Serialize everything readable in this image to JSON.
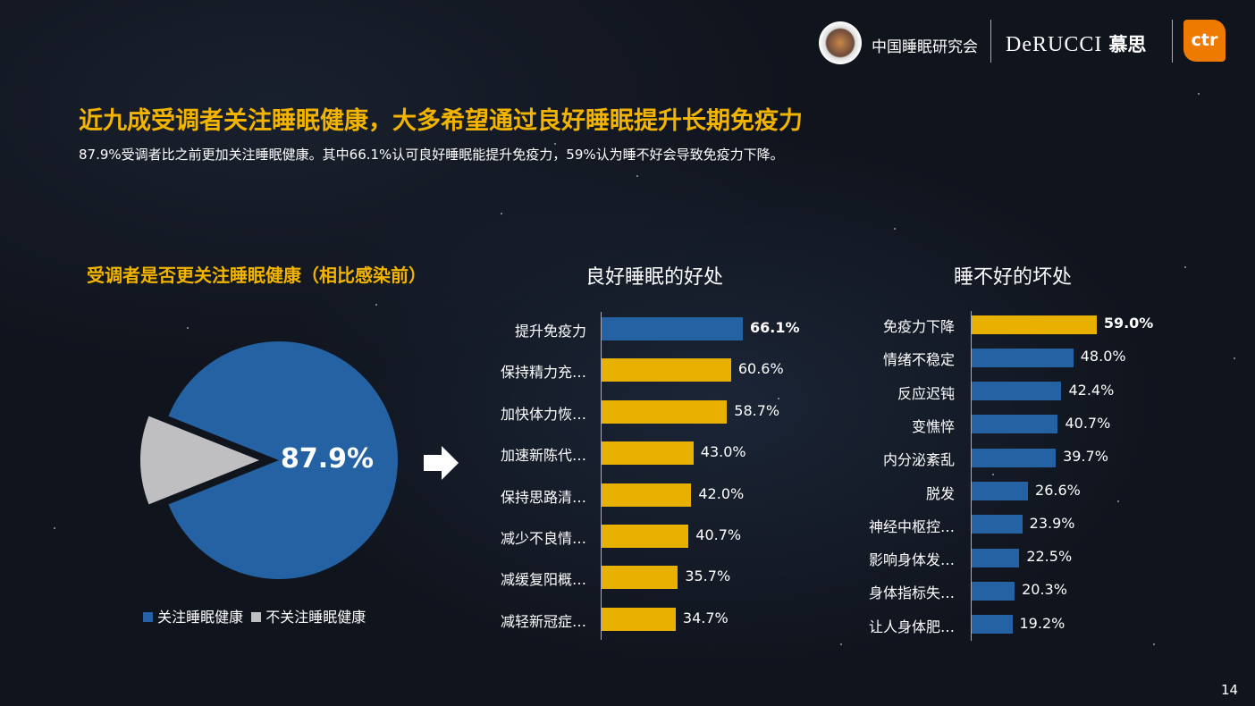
{
  "header": {
    "org1": "中国睡眠研究会",
    "org2_latin": "DeRUCCI",
    "org2_cn": "慕思",
    "org3": "ctr"
  },
  "title": "近九成受调者关注睡眠健康，大多希望通过良好睡眠提升长期免疫力",
  "subtitle": "87.9%受调者比之前更加关注睡眠健康。其中66.1%认可良好睡眠能提升免疫力，59%认为睡不好会导致免疫力下降。",
  "page_number": "14",
  "colors": {
    "blue": "#2462a3",
    "yellow": "#e8b000",
    "gray": "#bfbfc2",
    "title": "#f2b400"
  },
  "chart_data": [
    {
      "type": "pie",
      "title": "受调者是否更关注睡眠健康（相比感染前）",
      "categories": [
        "关注睡眠健康",
        "不关注睡眠健康"
      ],
      "values": [
        87.9,
        12.1
      ],
      "data_label": "87.9%",
      "legend": "bottom"
    },
    {
      "type": "bar",
      "orientation": "horizontal",
      "title": "良好睡眠的好处",
      "categories": [
        "提升免疫力",
        "保持精力充…",
        "加快体力恢…",
        "加速新陈代…",
        "保持思路清…",
        "减少不良情…",
        "减缓复阳概…",
        "减轻新冠症…"
      ],
      "values": [
        66.1,
        60.6,
        58.7,
        43.0,
        42.0,
        40.7,
        35.7,
        34.7
      ],
      "labels": [
        "66.1%",
        "60.6%",
        "58.7%",
        "43.0%",
        "42.0%",
        "40.7%",
        "35.7%",
        "34.7%"
      ],
      "highlight_index": 0
    },
    {
      "type": "bar",
      "orientation": "horizontal",
      "title": "睡不好的坏处",
      "categories": [
        "免疫力下降",
        "情绪不稳定",
        "反应迟钝",
        "变憔悴",
        "内分泌紊乱",
        "脱发",
        "神经中枢控…",
        "影响身体发…",
        "身体指标失…",
        "让人身体肥…"
      ],
      "values": [
        59.0,
        48.0,
        42.4,
        40.7,
        39.7,
        26.6,
        23.9,
        22.5,
        20.3,
        19.2
      ],
      "labels": [
        "59.0%",
        "48.0%",
        "42.4%",
        "40.7%",
        "39.7%",
        "26.6%",
        "23.9%",
        "22.5%",
        "20.3%",
        "19.2%"
      ],
      "highlight_index": 0
    }
  ]
}
